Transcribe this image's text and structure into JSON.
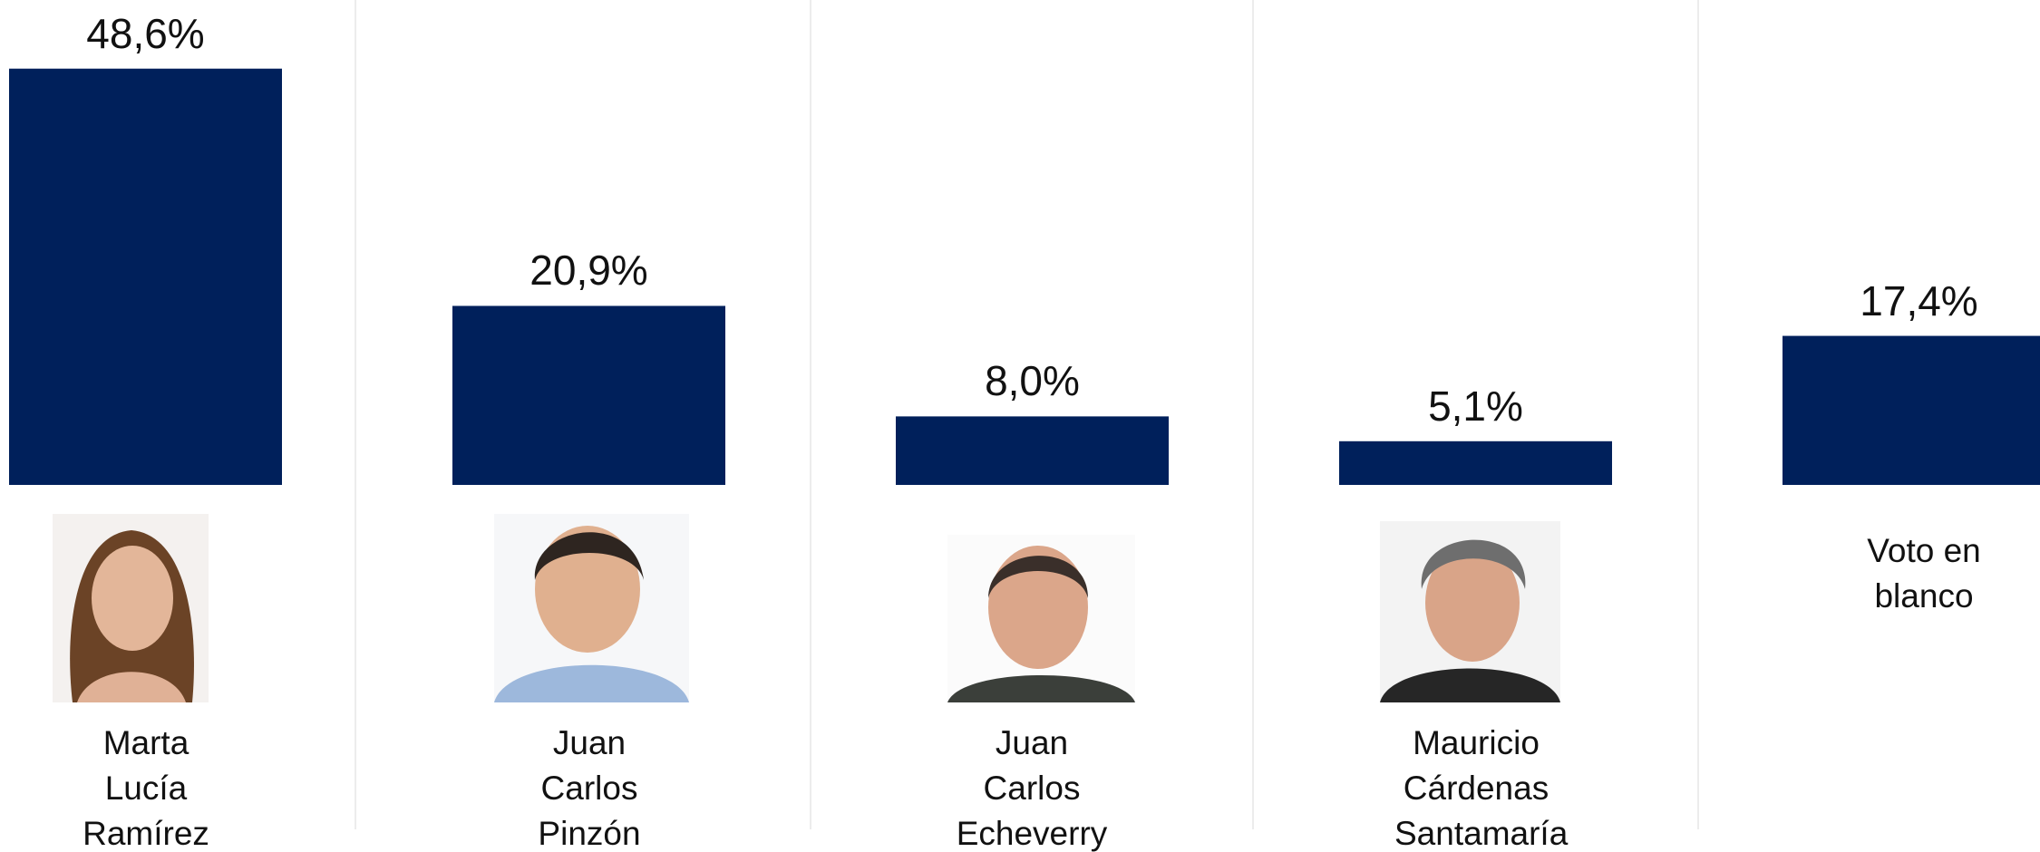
{
  "chart_data": {
    "type": "bar",
    "categories": [
      "Marta Lucía Ramírez",
      "Juan Carlos Pinzón",
      "Juan Carlos Echeverry",
      "Mauricio Cárdenas Santamaría",
      "Voto en blanco"
    ],
    "values": [
      48.6,
      20.9,
      8.0,
      5.1,
      17.4
    ],
    "value_labels": [
      "48,6%",
      "20,9%",
      "8,0%",
      "5,1%",
      "17,4%"
    ],
    "color": "#00205b"
  }
}
